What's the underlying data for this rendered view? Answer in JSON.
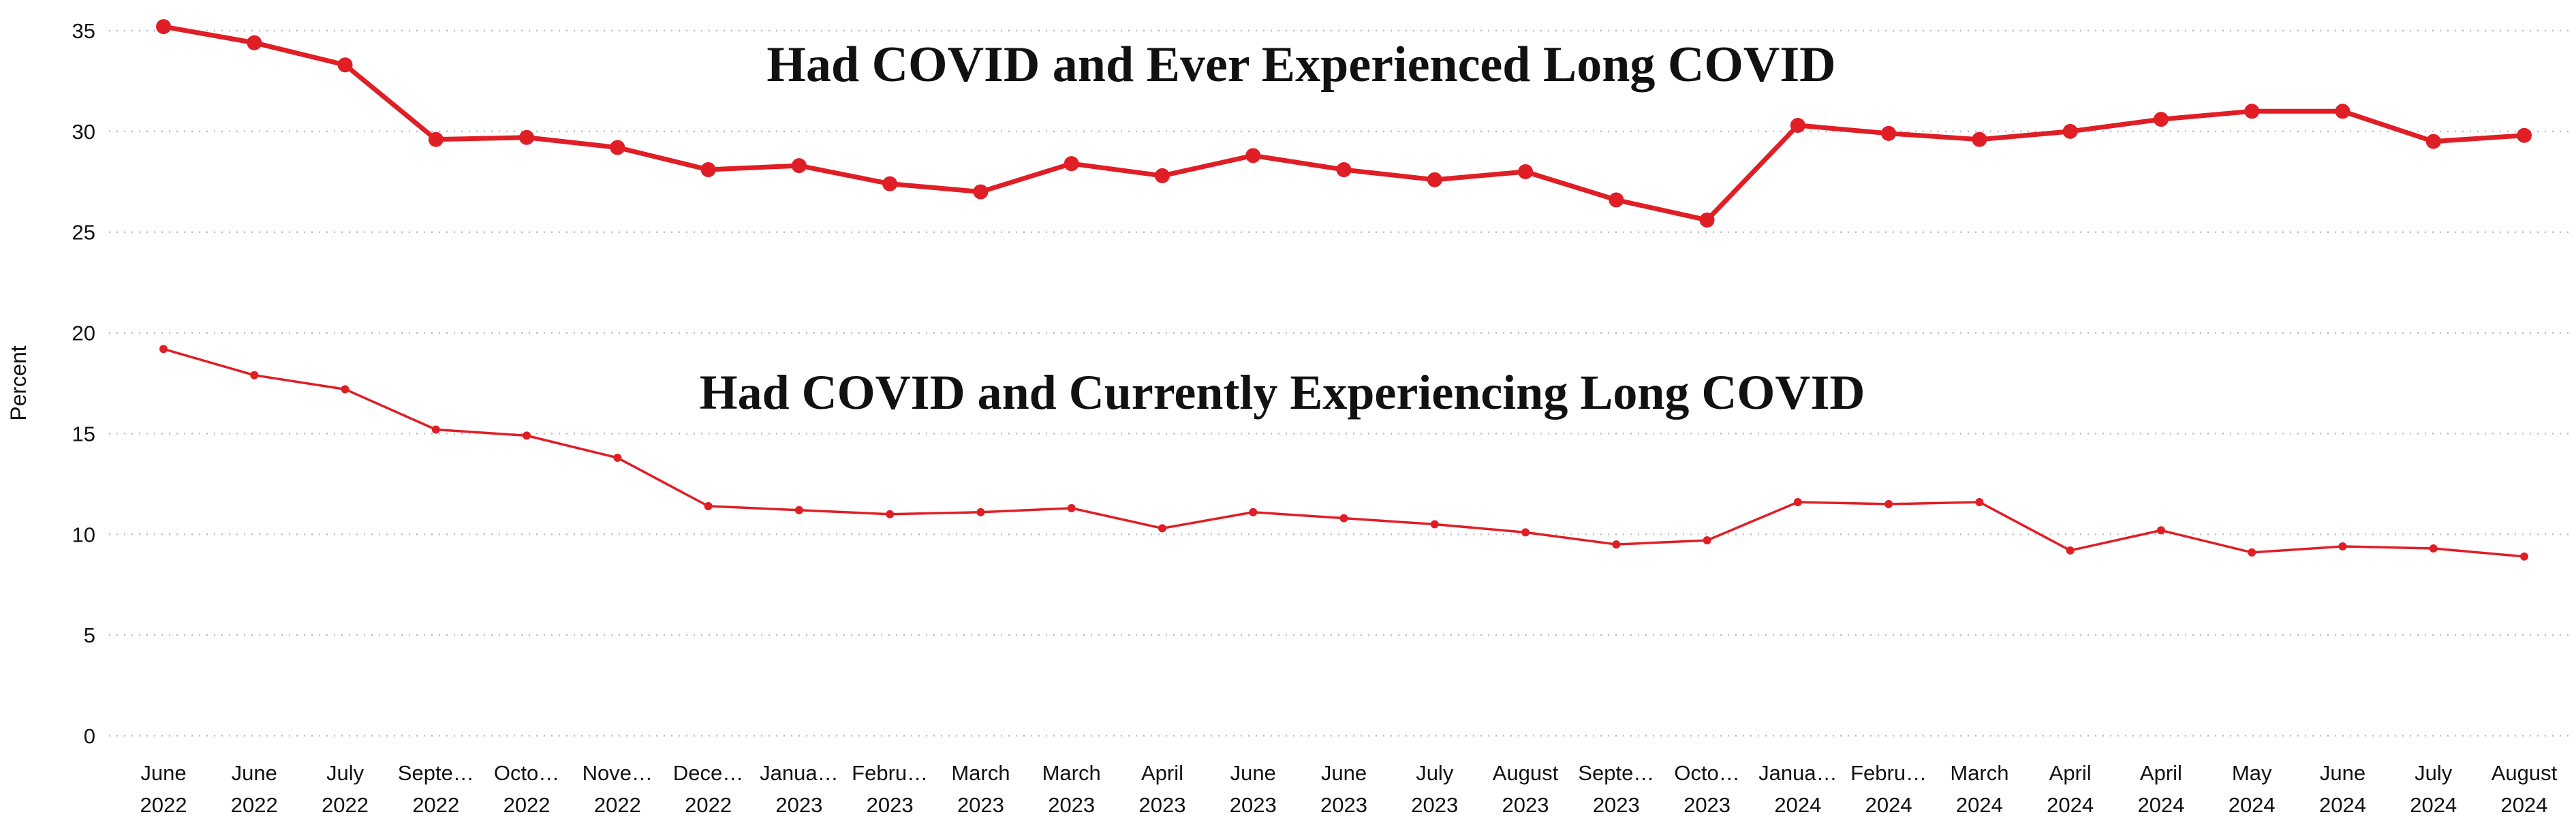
{
  "chart_data": {
    "type": "line",
    "title": "",
    "xlabel": "",
    "ylabel": "Percent",
    "ylim": [
      0,
      35
    ],
    "yticks": [
      0,
      5,
      10,
      15,
      20,
      25,
      30,
      35
    ],
    "grid": "horizontal-dotted",
    "legend_position": "in-plot-annotations",
    "accent_color": "#e01e25",
    "grid_color": "#bdbdbd",
    "text_color": "#111111",
    "categories": [
      {
        "line1": "June",
        "line2": "2022"
      },
      {
        "line1": "June",
        "line2": "2022"
      },
      {
        "line1": "July",
        "line2": "2022"
      },
      {
        "line1": "Septe…",
        "line2": "2022"
      },
      {
        "line1": "Octo…",
        "line2": "2022"
      },
      {
        "line1": "Nove…",
        "line2": "2022"
      },
      {
        "line1": "Dece…",
        "line2": "2022"
      },
      {
        "line1": "Janua…",
        "line2": "2023"
      },
      {
        "line1": "Febru…",
        "line2": "2023"
      },
      {
        "line1": "March",
        "line2": "2023"
      },
      {
        "line1": "March",
        "line2": "2023"
      },
      {
        "line1": "April",
        "line2": "2023"
      },
      {
        "line1": "June",
        "line2": "2023"
      },
      {
        "line1": "June",
        "line2": "2023"
      },
      {
        "line1": "July",
        "line2": "2023"
      },
      {
        "line1": "August",
        "line2": "2023"
      },
      {
        "line1": "Septe…",
        "line2": "2023"
      },
      {
        "line1": "Octo…",
        "line2": "2023"
      },
      {
        "line1": "Janua…",
        "line2": "2024"
      },
      {
        "line1": "Febru…",
        "line2": "2024"
      },
      {
        "line1": "March",
        "line2": "2024"
      },
      {
        "line1": "April",
        "line2": "2024"
      },
      {
        "line1": "April",
        "line2": "2024"
      },
      {
        "line1": "May",
        "line2": "2024"
      },
      {
        "line1": "June",
        "line2": "2024"
      },
      {
        "line1": "July",
        "line2": "2024"
      },
      {
        "line1": "August",
        "line2": "2024"
      }
    ],
    "series": [
      {
        "name": "Had COVID and Ever Experienced Long COVID",
        "values": [
          35.2,
          34.4,
          33.3,
          29.6,
          29.7,
          29.2,
          28.1,
          28.3,
          27.4,
          27.0,
          28.4,
          27.8,
          28.8,
          28.1,
          27.6,
          28.0,
          26.6,
          25.6,
          30.3,
          29.9,
          29.6,
          30.0,
          30.6,
          31.0,
          31.0,
          29.5,
          29.8
        ],
        "line_width": 7,
        "marker_radius": 11
      },
      {
        "name": "Had COVID and Currently Experiencing Long COVID",
        "values": [
          19.2,
          17.9,
          17.2,
          15.2,
          14.9,
          13.8,
          11.4,
          11.2,
          11.0,
          11.1,
          11.3,
          10.3,
          11.1,
          10.8,
          10.5,
          10.1,
          9.5,
          9.7,
          11.6,
          11.5,
          11.6,
          9.2,
          10.2,
          9.1,
          9.4,
          9.3,
          8.9
        ],
        "line_width": 3.5,
        "marker_radius": 6
      }
    ]
  }
}
